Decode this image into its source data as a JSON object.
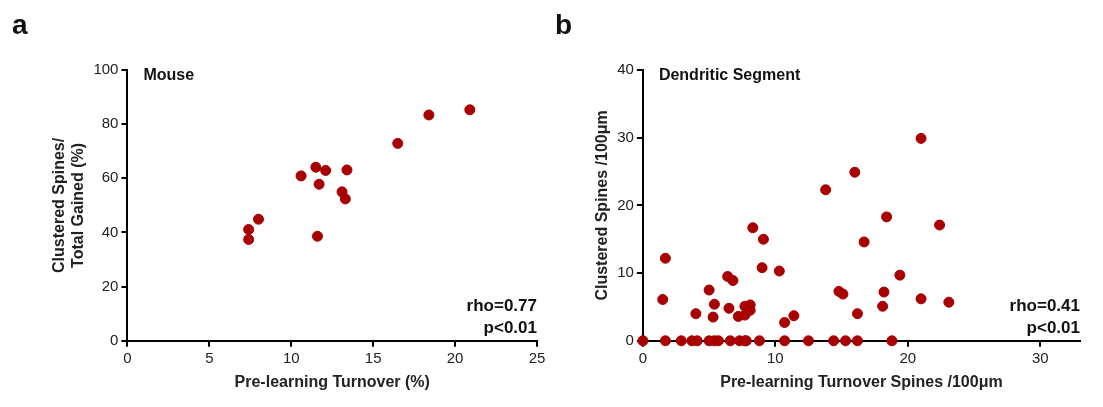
{
  "chart_data": [
    {
      "type": "scatter",
      "title": "Mouse",
      "xlabel": "Pre-learning Turnover (%)",
      "ylabel": "Clustered Spines/\nTotal Gained (%)",
      "annotations": [
        "a",
        "rho=0.77",
        "p<0.01"
      ],
      "xlim": [
        0,
        25
      ],
      "xticks": [
        0,
        5,
        10,
        15,
        20,
        25
      ],
      "ylim": [
        0,
        100
      ],
      "yticks": [
        0,
        20,
        40,
        60,
        80,
        100
      ],
      "grid": false,
      "legend": false,
      "marker": "circle",
      "series": [
        {
          "color": "#a80000",
          "x": [
            20.9,
            18.4,
            16.5,
            11.5,
            12.1,
            13.4,
            10.6,
            11.7,
            13.1,
            13.3,
            8.0,
            7.4,
            7.4,
            11.6
          ],
          "values": [
            85.3,
            83.4,
            72.9,
            64.1,
            62.9,
            63.1,
            60.9,
            57.8,
            55.0,
            52.4,
            44.9,
            41.1,
            37.4,
            38.6
          ]
        }
      ]
    },
    {
      "type": "scatter",
      "title": "Dendritic Segment",
      "xlabel": "Pre-learning Turnover Spines /100μm",
      "ylabel": "Clustered Spines /100μm",
      "annotations": [
        "b",
        "rho=0.41",
        "p<0.01"
      ],
      "xlim": [
        0,
        33
      ],
      "xticks": [
        0,
        10,
        20,
        30
      ],
      "ylim": [
        0,
        40
      ],
      "yticks": [
        0,
        10,
        20,
        30,
        40
      ],
      "grid": false,
      "legend": false,
      "marker": "circle",
      "series": [
        {
          "color": "#a80000",
          "x": [
            21.0,
            16.0,
            13.8,
            18.4,
            22.4,
            8.3,
            9.1,
            16.7,
            1.7,
            9.0,
            10.3,
            6.4,
            6.8,
            19.4,
            5.0,
            18.2,
            1.5,
            21.0,
            23.1,
            14.8,
            15.1,
            5.4,
            5.3,
            4.0,
            6.5,
            7.2,
            7.7,
            7.7,
            8.1,
            8.1,
            10.7,
            11.4,
            16.2,
            18.1,
            0,
            1.7,
            2.9,
            3.7,
            4.1,
            5.0,
            5.4,
            5.7,
            6.6,
            7.3,
            7.7,
            7.8,
            8.8,
            10.7,
            12.5,
            14.4,
            15.3,
            16.2,
            18.8
          ],
          "values": [
            29.9,
            24.9,
            22.3,
            18.3,
            17.1,
            16.7,
            15.0,
            14.6,
            12.2,
            10.8,
            10.3,
            9.5,
            8.9,
            9.7,
            7.5,
            7.2,
            6.1,
            6.2,
            5.7,
            7.3,
            6.9,
            5.4,
            3.5,
            4.0,
            4.8,
            3.6,
            3.8,
            5.1,
            5.3,
            4.5,
            2.7,
            3.7,
            4.0,
            5.1,
            0,
            0,
            0,
            0,
            0,
            0,
            0,
            0,
            0,
            0,
            0,
            0,
            0,
            0,
            0,
            0,
            0,
            0,
            0
          ]
        }
      ]
    }
  ]
}
